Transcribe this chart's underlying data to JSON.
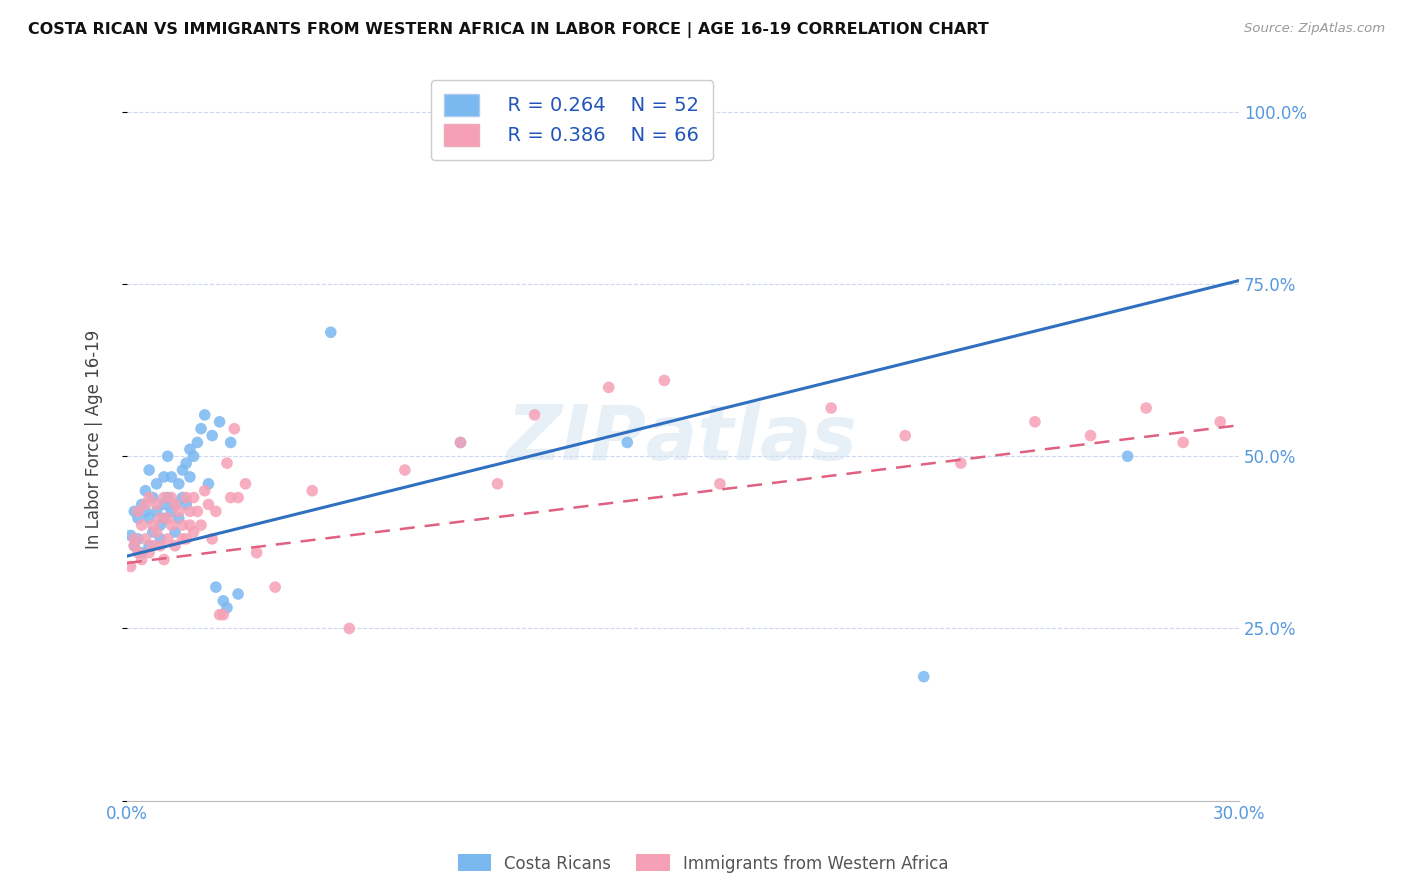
{
  "title": "COSTA RICAN VS IMMIGRANTS FROM WESTERN AFRICA IN LABOR FORCE | AGE 16-19 CORRELATION CHART",
  "source": "Source: ZipAtlas.com",
  "ylabel": "In Labor Force | Age 16-19",
  "xlim": [
    0.0,
    0.3
  ],
  "ylim": [
    0.0,
    1.05
  ],
  "ytick_positions": [
    0.0,
    0.25,
    0.5,
    0.75,
    1.0
  ],
  "ytick_labels": [
    "",
    "25.0%",
    "50.0%",
    "75.0%",
    "100.0%"
  ],
  "xtick_positions": [
    0.0,
    0.05,
    0.1,
    0.15,
    0.2,
    0.25,
    0.3
  ],
  "xtick_labels": [
    "0.0%",
    "",
    "",
    "",
    "",
    "",
    "30.0%"
  ],
  "blue_color": "#7ab8f0",
  "pink_color": "#f5a0b5",
  "trend_blue": "#3070c0",
  "trend_pink": "#e06080",
  "legend_r_blue": "R = 0.264",
  "legend_n_blue": "N = 52",
  "legend_r_pink": "R = 0.386",
  "legend_n_pink": "N = 66",
  "legend_label_blue": "Costa Ricans",
  "legend_label_pink": "Immigrants from Western Africa",
  "blue_trend_x": [
    0.0,
    0.3
  ],
  "blue_trend_y": [
    0.355,
    0.755
  ],
  "pink_trend_x": [
    0.0,
    0.3
  ],
  "pink_trend_y": [
    0.345,
    0.545
  ],
  "blue_x": [
    0.001,
    0.002,
    0.002,
    0.003,
    0.003,
    0.004,
    0.004,
    0.005,
    0.005,
    0.006,
    0.006,
    0.006,
    0.007,
    0.007,
    0.008,
    0.008,
    0.009,
    0.009,
    0.01,
    0.01,
    0.01,
    0.011,
    0.011,
    0.012,
    0.012,
    0.013,
    0.013,
    0.014,
    0.014,
    0.015,
    0.015,
    0.016,
    0.016,
    0.017,
    0.017,
    0.018,
    0.019,
    0.02,
    0.021,
    0.022,
    0.023,
    0.024,
    0.025,
    0.026,
    0.027,
    0.028,
    0.03,
    0.055,
    0.09,
    0.135,
    0.215,
    0.27
  ],
  "blue_y": [
    0.385,
    0.42,
    0.37,
    0.41,
    0.38,
    0.43,
    0.36,
    0.45,
    0.42,
    0.48,
    0.41,
    0.37,
    0.44,
    0.39,
    0.46,
    0.42,
    0.4,
    0.38,
    0.43,
    0.47,
    0.41,
    0.5,
    0.44,
    0.47,
    0.42,
    0.43,
    0.39,
    0.46,
    0.41,
    0.48,
    0.44,
    0.49,
    0.43,
    0.51,
    0.47,
    0.5,
    0.52,
    0.54,
    0.56,
    0.46,
    0.53,
    0.31,
    0.55,
    0.29,
    0.28,
    0.52,
    0.3,
    0.68,
    0.52,
    0.52,
    0.18,
    0.5
  ],
  "pink_x": [
    0.001,
    0.002,
    0.002,
    0.003,
    0.003,
    0.004,
    0.004,
    0.005,
    0.005,
    0.006,
    0.006,
    0.007,
    0.007,
    0.008,
    0.008,
    0.009,
    0.009,
    0.01,
    0.01,
    0.011,
    0.011,
    0.012,
    0.012,
    0.013,
    0.013,
    0.014,
    0.015,
    0.015,
    0.016,
    0.016,
    0.017,
    0.017,
    0.018,
    0.018,
    0.019,
    0.02,
    0.021,
    0.022,
    0.023,
    0.024,
    0.025,
    0.026,
    0.027,
    0.028,
    0.029,
    0.03,
    0.032,
    0.035,
    0.04,
    0.05,
    0.06,
    0.075,
    0.09,
    0.1,
    0.11,
    0.13,
    0.145,
    0.16,
    0.19,
    0.21,
    0.225,
    0.245,
    0.26,
    0.275,
    0.285,
    0.295
  ],
  "pink_y": [
    0.34,
    0.38,
    0.37,
    0.42,
    0.36,
    0.4,
    0.35,
    0.43,
    0.38,
    0.44,
    0.36,
    0.4,
    0.37,
    0.43,
    0.39,
    0.41,
    0.37,
    0.44,
    0.35,
    0.41,
    0.38,
    0.44,
    0.4,
    0.43,
    0.37,
    0.42,
    0.38,
    0.4,
    0.44,
    0.38,
    0.42,
    0.4,
    0.44,
    0.39,
    0.42,
    0.4,
    0.45,
    0.43,
    0.38,
    0.42,
    0.27,
    0.27,
    0.49,
    0.44,
    0.54,
    0.44,
    0.46,
    0.36,
    0.31,
    0.45,
    0.25,
    0.48,
    0.52,
    0.46,
    0.56,
    0.6,
    0.61,
    0.46,
    0.57,
    0.53,
    0.49,
    0.55,
    0.53,
    0.57,
    0.52,
    0.55
  ]
}
